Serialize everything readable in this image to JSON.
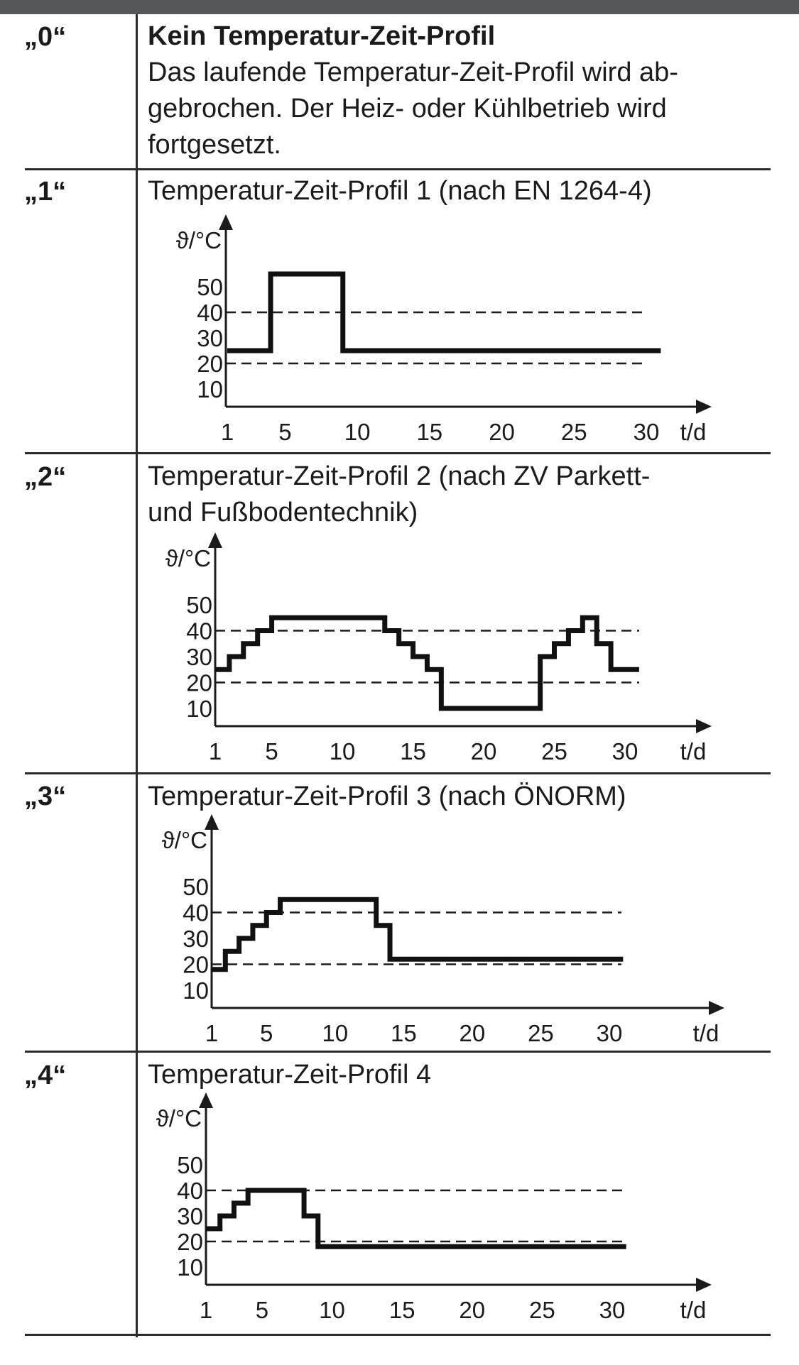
{
  "rows": [
    {
      "code": "„0“",
      "title": "Kein Temperatur-Zeit-Profil",
      "desc_lines": [
        "Das laufende Temperatur-Zeit-Profil wird ab-",
        "gebrochen. Der Heiz- oder Kühlbetrieb wird",
        "fortgesetzt."
      ]
    },
    {
      "code": "„1“",
      "title_lines": [
        "Temperatur-Zeit-Profil 1 (nach EN 1264-4)"
      ]
    },
    {
      "code": "„2“",
      "title_lines": [
        "Temperatur-Zeit-Profil 2 (nach ZV Parkett-",
        "und Fußbodentechnik)"
      ]
    },
    {
      "code": "„3“",
      "title_lines": [
        "Temperatur-Zeit-Profil 3 (nach ÖNORM)"
      ]
    },
    {
      "code": "„4“",
      "title_lines": [
        "Temperatur-Zeit-Profil 4"
      ]
    }
  ],
  "chart_data": [
    {
      "type": "line",
      "title": "Temperatur-Zeit-Profil 1 (nach EN 1264-4)",
      "ylabel": "ϑ/°C",
      "xlabel": "t/d",
      "x_ticks": [
        "1",
        "5",
        "10",
        "15",
        "20",
        "25",
        "30"
      ],
      "x_tick_values": [
        1,
        5,
        10,
        15,
        20,
        25,
        30
      ],
      "y_ticks": [
        "10",
        "20",
        "30",
        "40",
        "50"
      ],
      "y_tick_values": [
        10,
        20,
        30,
        40,
        50
      ],
      "reference_lines": [
        20,
        40
      ],
      "steps": [
        [
          1,
          25
        ],
        [
          4,
          55
        ],
        [
          9,
          25
        ],
        [
          31,
          25
        ]
      ]
    },
    {
      "type": "line",
      "title": "Temperatur-Zeit-Profil 2 (nach ZV Parkett- und Fußbodentechnik)",
      "ylabel": "ϑ/°C",
      "xlabel": "t/d",
      "x_ticks": [
        "1",
        "5",
        "10",
        "15",
        "20",
        "25",
        "30"
      ],
      "x_tick_values": [
        1,
        5,
        10,
        15,
        20,
        25,
        30
      ],
      "y_ticks": [
        "10",
        "20",
        "30",
        "40",
        "50"
      ],
      "y_tick_values": [
        10,
        20,
        30,
        40,
        50
      ],
      "reference_lines": [
        20,
        40
      ],
      "steps": [
        [
          1,
          25
        ],
        [
          2,
          30
        ],
        [
          3,
          35
        ],
        [
          4,
          40
        ],
        [
          5,
          45
        ],
        [
          13,
          40
        ],
        [
          14,
          35
        ],
        [
          15,
          30
        ],
        [
          16,
          25
        ],
        [
          17,
          10
        ],
        [
          24,
          30
        ],
        [
          25,
          35
        ],
        [
          26,
          40
        ],
        [
          27,
          45
        ],
        [
          28,
          35
        ],
        [
          29,
          25
        ],
        [
          31,
          25
        ]
      ]
    },
    {
      "type": "line",
      "title": "Temperatur-Zeit-Profil 3 (nach ÖNORM)",
      "ylabel": "ϑ/°C",
      "xlabel": "t/d",
      "x_ticks": [
        "1",
        "5",
        "10",
        "15",
        "20",
        "25",
        "30"
      ],
      "x_tick_values": [
        1,
        5,
        10,
        15,
        20,
        25,
        30
      ],
      "y_ticks": [
        "10",
        "20",
        "30",
        "40",
        "50"
      ],
      "y_tick_values": [
        10,
        20,
        30,
        40,
        50
      ],
      "reference_lines": [
        20,
        40
      ],
      "steps": [
        [
          1,
          18
        ],
        [
          2,
          25
        ],
        [
          3,
          30
        ],
        [
          4,
          35
        ],
        [
          5,
          40
        ],
        [
          6,
          45
        ],
        [
          13,
          35
        ],
        [
          14,
          22
        ],
        [
          31,
          22
        ]
      ]
    },
    {
      "type": "line",
      "title": "Temperatur-Zeit-Profil 4",
      "ylabel": "ϑ/°C",
      "xlabel": "t/d",
      "x_ticks": [
        "1",
        "5",
        "10",
        "15",
        "20",
        "25",
        "30"
      ],
      "x_tick_values": [
        1,
        5,
        10,
        15,
        20,
        25,
        30
      ],
      "y_ticks": [
        "10",
        "20",
        "30",
        "40",
        "50"
      ],
      "y_tick_values": [
        10,
        20,
        30,
        40,
        50
      ],
      "reference_lines": [
        20,
        40
      ],
      "steps": [
        [
          1,
          25
        ],
        [
          2,
          30
        ],
        [
          3,
          35
        ],
        [
          4,
          40
        ],
        [
          8,
          30
        ],
        [
          9,
          18
        ],
        [
          31,
          18
        ]
      ]
    }
  ]
}
